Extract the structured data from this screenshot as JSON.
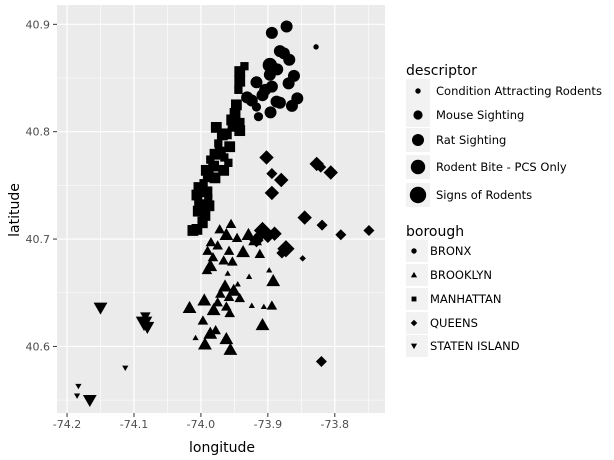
{
  "chart_data": {
    "type": "scatter",
    "title": "",
    "xlabel": "longitude",
    "ylabel": "latitude",
    "xlim": [
      -74.215,
      -73.725
    ],
    "ylim": [
      40.538,
      40.918
    ],
    "x_ticks": [
      -74.2,
      -74.1,
      -74.0,
      -73.9,
      -73.8
    ],
    "x_tick_labels": [
      "-74.2",
      "-74.1",
      "-74.0",
      "-73.9",
      "-73.8"
    ],
    "y_ticks": [
      40.6,
      40.7,
      40.8,
      40.9
    ],
    "y_tick_labels": [
      "40.6",
      "40.7",
      "40.8",
      "40.9"
    ],
    "grid": true,
    "panel_background": "#ebebeb",
    "point_color": "#000000",
    "size_legend": {
      "title": "descriptor",
      "entries": [
        {
          "name": "Condition Attracting Rodents",
          "size": 1
        },
        {
          "name": "Mouse Sighting",
          "size": 2
        },
        {
          "name": "Rat Sighting",
          "size": 3
        },
        {
          "name": "Rodent Bite - PCS Only",
          "size": 4
        },
        {
          "name": "Signs of Rodents",
          "size": 5
        }
      ]
    },
    "shape_legend": {
      "title": "borough",
      "entries": [
        {
          "name": "BRONX",
          "shape": "circle"
        },
        {
          "name": "BROOKLYN",
          "shape": "triangle-up"
        },
        {
          "name": "MANHATTAN",
          "shape": "square"
        },
        {
          "name": "QUEENS",
          "shape": "diamond"
        },
        {
          "name": "STATEN ISLAND",
          "shape": "triangle-down"
        }
      ]
    },
    "series": [
      {
        "name": "BRONX",
        "shape": "circle",
        "points": [
          {
            "x": -73.894,
            "y": 40.892,
            "size": 3
          },
          {
            "x": -73.872,
            "y": 40.898,
            "size": 3
          },
          {
            "x": -73.828,
            "y": 40.879,
            "size": 1
          },
          {
            "x": -73.882,
            "y": 40.875,
            "size": 3
          },
          {
            "x": -73.876,
            "y": 40.873,
            "size": 3
          },
          {
            "x": -73.868,
            "y": 40.867,
            "size": 3
          },
          {
            "x": -73.897,
            "y": 40.862,
            "size": 4
          },
          {
            "x": -73.886,
            "y": 40.858,
            "size": 3
          },
          {
            "x": -73.897,
            "y": 40.853,
            "size": 3
          },
          {
            "x": -73.861,
            "y": 40.852,
            "size": 3
          },
          {
            "x": -73.869,
            "y": 40.845,
            "size": 3
          },
          {
            "x": -73.917,
            "y": 40.846,
            "size": 3
          },
          {
            "x": -73.894,
            "y": 40.842,
            "size": 3
          },
          {
            "x": -73.904,
            "y": 40.839,
            "size": 3
          },
          {
            "x": -73.908,
            "y": 40.834,
            "size": 3
          },
          {
            "x": -73.856,
            "y": 40.831,
            "size": 3
          },
          {
            "x": -73.931,
            "y": 40.832,
            "size": 3
          },
          {
            "x": -73.882,
            "y": 40.827,
            "size": 3
          },
          {
            "x": -73.887,
            "y": 40.828,
            "size": 3
          },
          {
            "x": -73.924,
            "y": 40.829,
            "size": 3
          },
          {
            "x": -73.864,
            "y": 40.824,
            "size": 3
          },
          {
            "x": -73.917,
            "y": 40.823,
            "size": 2
          },
          {
            "x": -73.896,
            "y": 40.818,
            "size": 3
          },
          {
            "x": -73.914,
            "y": 40.814,
            "size": 2
          }
        ]
      },
      {
        "name": "MANHATTAN",
        "shape": "square",
        "points": [
          {
            "x": -73.935,
            "y": 40.861,
            "size": 2
          },
          {
            "x": -73.942,
            "y": 40.856,
            "size": 3
          },
          {
            "x": -73.942,
            "y": 40.847,
            "size": 3
          },
          {
            "x": -73.944,
            "y": 40.839,
            "size": 2
          },
          {
            "x": -73.947,
            "y": 40.825,
            "size": 3
          },
          {
            "x": -73.949,
            "y": 40.817,
            "size": 3
          },
          {
            "x": -73.954,
            "y": 40.811,
            "size": 3
          },
          {
            "x": -73.941,
            "y": 40.809,
            "size": 2
          },
          {
            "x": -73.952,
            "y": 40.805,
            "size": 3
          },
          {
            "x": -73.977,
            "y": 40.804,
            "size": 3
          },
          {
            "x": -73.942,
            "y": 40.801,
            "size": 3
          },
          {
            "x": -73.962,
            "y": 40.798,
            "size": 3
          },
          {
            "x": -73.968,
            "y": 40.797,
            "size": 3
          },
          {
            "x": -73.974,
            "y": 40.789,
            "size": 2
          },
          {
            "x": -73.957,
            "y": 40.786,
            "size": 3
          },
          {
            "x": -73.971,
            "y": 40.781,
            "size": 3
          },
          {
            "x": -73.979,
            "y": 40.779,
            "size": 3
          },
          {
            "x": -73.965,
            "y": 40.776,
            "size": 2
          },
          {
            "x": -73.986,
            "y": 40.774,
            "size": 2
          },
          {
            "x": -73.959,
            "y": 40.771,
            "size": 2
          },
          {
            "x": -73.981,
            "y": 40.768,
            "size": 3
          },
          {
            "x": -73.992,
            "y": 40.764,
            "size": 3
          },
          {
            "x": -73.966,
            "y": 40.764,
            "size": 3
          },
          {
            "x": -73.989,
            "y": 40.758,
            "size": 3
          },
          {
            "x": -73.979,
            "y": 40.757,
            "size": 3
          },
          {
            "x": -73.996,
            "y": 40.752,
            "size": 2
          },
          {
            "x": -74.003,
            "y": 40.748,
            "size": 3
          },
          {
            "x": -73.991,
            "y": 40.744,
            "size": 3
          },
          {
            "x": -74.006,
            "y": 40.741,
            "size": 3
          },
          {
            "x": -73.989,
            "y": 40.738,
            "size": 2
          },
          {
            "x": -74.002,
            "y": 40.732,
            "size": 3
          },
          {
            "x": -73.988,
            "y": 40.731,
            "size": 3
          },
          {
            "x": -74.004,
            "y": 40.726,
            "size": 3
          },
          {
            "x": -73.994,
            "y": 40.722,
            "size": 3
          },
          {
            "x": -73.999,
            "y": 40.717,
            "size": 2
          },
          {
            "x": -74.012,
            "y": 40.708,
            "size": 3
          },
          {
            "x": -74.006,
            "y": 40.709,
            "size": 3
          },
          {
            "x": -73.996,
            "y": 40.714,
            "size": 2
          }
        ]
      },
      {
        "name": "QUEENS",
        "shape": "diamond",
        "points": [
          {
            "x": -73.902,
            "y": 40.776,
            "size": 3
          },
          {
            "x": -73.827,
            "y": 40.77,
            "size": 3
          },
          {
            "x": -73.821,
            "y": 40.767,
            "size": 2
          },
          {
            "x": -73.806,
            "y": 40.762,
            "size": 3
          },
          {
            "x": -73.894,
            "y": 40.761,
            "size": 2
          },
          {
            "x": -73.88,
            "y": 40.755,
            "size": 3
          },
          {
            "x": -73.894,
            "y": 40.743,
            "size": 3
          },
          {
            "x": -73.845,
            "y": 40.72,
            "size": 3
          },
          {
            "x": -73.819,
            "y": 40.713,
            "size": 2
          },
          {
            "x": -73.749,
            "y": 40.708,
            "size": 2
          },
          {
            "x": -73.791,
            "y": 40.704,
            "size": 2
          },
          {
            "x": -73.908,
            "y": 40.708,
            "size": 4
          },
          {
            "x": -73.9,
            "y": 40.703,
            "size": 3
          },
          {
            "x": -73.917,
            "y": 40.699,
            "size": 3
          },
          {
            "x": -73.89,
            "y": 40.705,
            "size": 3
          },
          {
            "x": -73.873,
            "y": 40.691,
            "size": 4
          },
          {
            "x": -73.879,
            "y": 40.687,
            "size": 2
          },
          {
            "x": -73.848,
            "y": 40.682,
            "size": 1
          },
          {
            "x": -73.82,
            "y": 40.586,
            "size": 2
          }
        ]
      },
      {
        "name": "BROOKLYN",
        "shape": "triangle-up",
        "points": [
          {
            "x": -73.955,
            "y": 40.714,
            "size": 2
          },
          {
            "x": -73.972,
            "y": 40.709,
            "size": 2
          },
          {
            "x": -73.962,
            "y": 40.704,
            "size": 3
          },
          {
            "x": -73.946,
            "y": 40.701,
            "size": 2
          },
          {
            "x": -73.929,
            "y": 40.704,
            "size": 3
          },
          {
            "x": -73.919,
            "y": 40.699,
            "size": 3
          },
          {
            "x": -73.985,
            "y": 40.697,
            "size": 2
          },
          {
            "x": -73.975,
            "y": 40.694,
            "size": 2
          },
          {
            "x": -73.99,
            "y": 40.689,
            "size": 2
          },
          {
            "x": -73.958,
            "y": 40.689,
            "size": 2
          },
          {
            "x": -73.937,
            "y": 40.688,
            "size": 3
          },
          {
            "x": -73.982,
            "y": 40.683,
            "size": 2
          },
          {
            "x": -73.912,
            "y": 40.686,
            "size": 2
          },
          {
            "x": -73.966,
            "y": 40.68,
            "size": 2
          },
          {
            "x": -73.953,
            "y": 40.679,
            "size": 2
          },
          {
            "x": -73.986,
            "y": 40.675,
            "size": 3
          },
          {
            "x": -73.991,
            "y": 40.671,
            "size": 2
          },
          {
            "x": -73.96,
            "y": 40.668,
            "size": 1
          },
          {
            "x": -73.898,
            "y": 40.671,
            "size": 1
          },
          {
            "x": -73.892,
            "y": 40.661,
            "size": 3
          },
          {
            "x": -73.964,
            "y": 40.656,
            "size": 3
          },
          {
            "x": -73.951,
            "y": 40.652,
            "size": 3
          },
          {
            "x": -73.971,
            "y": 40.649,
            "size": 2
          },
          {
            "x": -73.958,
            "y": 40.646,
            "size": 2
          },
          {
            "x": -73.995,
            "y": 40.643,
            "size": 3
          },
          {
            "x": -73.975,
            "y": 40.641,
            "size": 2
          },
          {
            "x": -73.942,
            "y": 40.645,
            "size": 2
          },
          {
            "x": -73.962,
            "y": 40.637,
            "size": 2
          },
          {
            "x": -73.924,
            "y": 40.638,
            "size": 1
          },
          {
            "x": -73.894,
            "y": 40.638,
            "size": 2
          },
          {
            "x": -73.906,
            "y": 40.637,
            "size": 1
          },
          {
            "x": -74.017,
            "y": 40.636,
            "size": 3
          },
          {
            "x": -73.981,
            "y": 40.634,
            "size": 3
          },
          {
            "x": -73.957,
            "y": 40.631,
            "size": 2
          },
          {
            "x": -73.997,
            "y": 40.624,
            "size": 2
          },
          {
            "x": -73.908,
            "y": 40.62,
            "size": 3
          },
          {
            "x": -73.986,
            "y": 40.612,
            "size": 3
          },
          {
            "x": -74.008,
            "y": 40.608,
            "size": 1
          },
          {
            "x": -73.962,
            "y": 40.607,
            "size": 3
          },
          {
            "x": -73.994,
            "y": 40.602,
            "size": 3
          },
          {
            "x": -73.956,
            "y": 40.597,
            "size": 3
          },
          {
            "x": -73.978,
            "y": 40.615,
            "size": 2
          },
          {
            "x": -73.945,
            "y": 40.658,
            "size": 1
          },
          {
            "x": -73.928,
            "y": 40.665,
            "size": 1
          }
        ]
      },
      {
        "name": "STATEN ISLAND",
        "shape": "triangle-down",
        "points": [
          {
            "x": -74.15,
            "y": 40.636,
            "size": 3
          },
          {
            "x": -74.083,
            "y": 40.628,
            "size": 2
          },
          {
            "x": -74.085,
            "y": 40.622,
            "size": 4
          },
          {
            "x": -74.08,
            "y": 40.618,
            "size": 3
          },
          {
            "x": -74.113,
            "y": 40.58,
            "size": 1
          },
          {
            "x": -74.183,
            "y": 40.563,
            "size": 1
          },
          {
            "x": -74.185,
            "y": 40.554,
            "size": 1
          },
          {
            "x": -74.166,
            "y": 40.55,
            "size": 3
          }
        ]
      }
    ]
  }
}
